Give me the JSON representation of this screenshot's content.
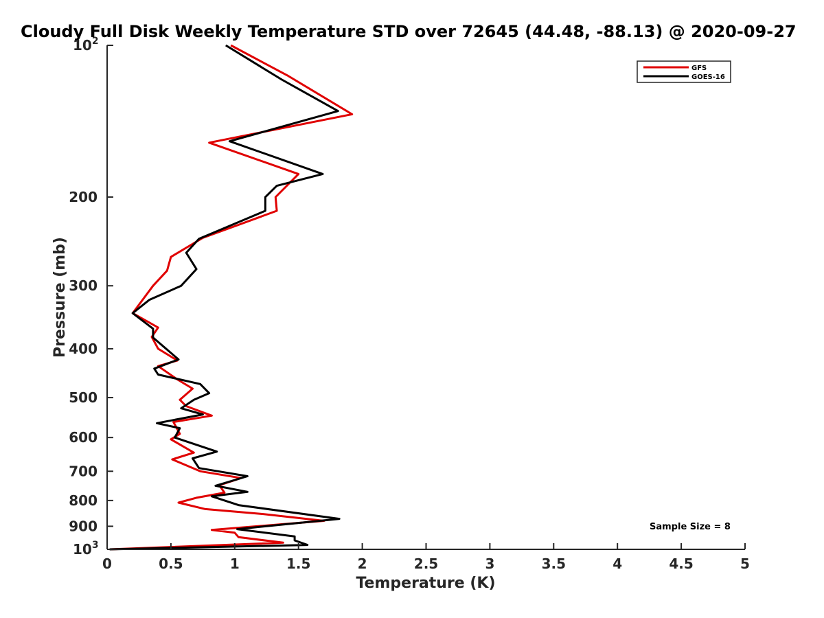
{
  "chart_data": {
    "type": "line",
    "title": "Cloudy Full Disk Weekly Temperature STD over 72645 (44.48, -88.13) @ 2020-09-27",
    "xlabel": "Temperature (K)",
    "ylabel": "Pressure (mb)",
    "xlim": [
      0,
      5
    ],
    "ylim": [
      1000,
      100
    ],
    "yscale": "log",
    "y_reversed": true,
    "grid": false,
    "legend_position": "top-right",
    "xticks": [
      0,
      0.5,
      1,
      1.5,
      2,
      2.5,
      3,
      3.5,
      4,
      4.5,
      5
    ],
    "xtick_labels": [
      "0",
      "0.5",
      "1",
      "1.5",
      "2",
      "2.5",
      "3",
      "3.5",
      "4",
      "4.5",
      "5"
    ],
    "yticks": [
      100,
      200,
      300,
      400,
      500,
      600,
      700,
      800,
      900,
      1000
    ],
    "ytick_labels": [
      {
        "base": "10",
        "exp": "2"
      },
      {
        "base": "200",
        "exp": ""
      },
      {
        "base": "300",
        "exp": ""
      },
      {
        "base": "400",
        "exp": ""
      },
      {
        "base": "500",
        "exp": ""
      },
      {
        "base": "600",
        "exp": ""
      },
      {
        "base": "700",
        "exp": ""
      },
      {
        "base": "800",
        "exp": ""
      },
      {
        "base": "900",
        "exp": ""
      },
      {
        "base": "10",
        "exp": "3"
      }
    ],
    "annotation": "Sample Size = 8",
    "series": [
      {
        "name": "GFS",
        "color": "#e00000",
        "points": [
          [
            0.97,
            100
          ],
          [
            1.42,
            115
          ],
          [
            1.92,
            137
          ],
          [
            0.8,
            156
          ],
          [
            1.5,
            180
          ],
          [
            1.32,
            200
          ],
          [
            1.33,
            213
          ],
          [
            0.75,
            241
          ],
          [
            0.5,
            263
          ],
          [
            0.47,
            280
          ],
          [
            0.36,
            300
          ],
          [
            0.2,
            340
          ],
          [
            0.4,
            363
          ],
          [
            0.35,
            379
          ],
          [
            0.4,
            400
          ],
          [
            0.55,
            422
          ],
          [
            0.4,
            433
          ],
          [
            0.55,
            460
          ],
          [
            0.67,
            480
          ],
          [
            0.57,
            505
          ],
          [
            0.62,
            520
          ],
          [
            0.82,
            543
          ],
          [
            0.52,
            559
          ],
          [
            0.57,
            590
          ],
          [
            0.5,
            605
          ],
          [
            0.68,
            643
          ],
          [
            0.51,
            663
          ],
          [
            0.73,
            700
          ],
          [
            1.05,
            722
          ],
          [
            0.88,
            746
          ],
          [
            0.92,
            772
          ],
          [
            0.7,
            790
          ],
          [
            0.56,
            808
          ],
          [
            0.77,
            832
          ],
          [
            1.2,
            850
          ],
          [
            1.7,
            878
          ],
          [
            0.82,
            915
          ],
          [
            1.0,
            927
          ],
          [
            1.03,
            946
          ],
          [
            1.38,
            970
          ],
          [
            0.02,
            1000
          ]
        ]
      },
      {
        "name": "GOES-16",
        "color": "#000000",
        "points": [
          [
            0.93,
            100
          ],
          [
            1.37,
            117
          ],
          [
            1.81,
            135
          ],
          [
            0.96,
            155
          ],
          [
            1.69,
            180
          ],
          [
            1.33,
            190
          ],
          [
            1.24,
            200
          ],
          [
            1.24,
            213
          ],
          [
            0.72,
            242
          ],
          [
            0.62,
            258
          ],
          [
            0.7,
            278
          ],
          [
            0.58,
            300
          ],
          [
            0.33,
            320
          ],
          [
            0.2,
            340
          ],
          [
            0.36,
            365
          ],
          [
            0.36,
            380
          ],
          [
            0.56,
            420
          ],
          [
            0.37,
            438
          ],
          [
            0.4,
            450
          ],
          [
            0.73,
            470
          ],
          [
            0.8,
            490
          ],
          [
            0.68,
            505
          ],
          [
            0.58,
            525
          ],
          [
            0.75,
            540
          ],
          [
            0.39,
            562
          ],
          [
            0.57,
            575
          ],
          [
            0.53,
            600
          ],
          [
            0.86,
            640
          ],
          [
            0.67,
            660
          ],
          [
            0.72,
            690
          ],
          [
            1.1,
            716
          ],
          [
            0.85,
            748
          ],
          [
            1.1,
            769
          ],
          [
            0.82,
            785
          ],
          [
            1.03,
            817
          ],
          [
            1.82,
            870
          ],
          [
            1.02,
            912
          ],
          [
            1.47,
            943
          ],
          [
            1.47,
            960
          ],
          [
            1.57,
            980
          ],
          [
            0.02,
            1000
          ]
        ]
      }
    ]
  }
}
